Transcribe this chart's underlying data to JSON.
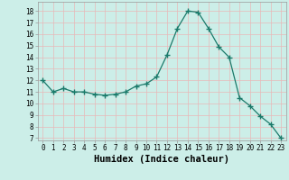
{
  "x": [
    0,
    1,
    2,
    3,
    4,
    5,
    6,
    7,
    8,
    9,
    10,
    11,
    12,
    13,
    14,
    15,
    16,
    17,
    18,
    19,
    20,
    21,
    22,
    23
  ],
  "y": [
    12,
    11,
    11.3,
    11,
    11,
    10.8,
    10.7,
    10.8,
    11,
    11.5,
    11.7,
    12.3,
    14.2,
    16.5,
    18,
    17.9,
    16.5,
    14.9,
    14,
    10.5,
    9.8,
    8.9,
    8.2,
    7
  ],
  "title": "",
  "xlabel": "Humidex (Indice chaleur)",
  "xlim": [
    -0.5,
    23.5
  ],
  "ylim": [
    6.8,
    18.8
  ],
  "yticks": [
    7,
    8,
    9,
    10,
    11,
    12,
    13,
    14,
    15,
    16,
    17,
    18
  ],
  "xtick_labels": [
    "0",
    "1",
    "2",
    "3",
    "4",
    "5",
    "6",
    "7",
    "8",
    "9",
    "10",
    "11",
    "12",
    "13",
    "14",
    "15",
    "16",
    "17",
    "18",
    "19",
    "20",
    "21",
    "22",
    "23"
  ],
  "line_color": "#1a7a6a",
  "marker": "+",
  "marker_size": 4,
  "marker_edge_width": 1.0,
  "line_width": 0.9,
  "bg_color": "#cceee8",
  "grid_color": "#e8b8b8",
  "tick_fontsize": 5.5,
  "xlabel_fontsize": 7.5
}
